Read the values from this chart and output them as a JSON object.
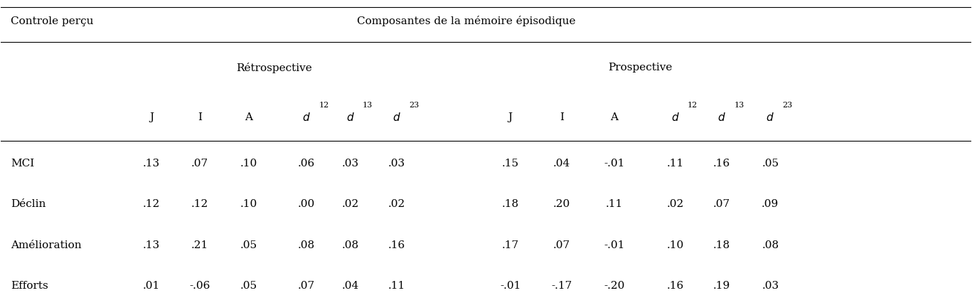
{
  "header1_left": "Controle perçu",
  "header1_right": "Composantes de la mémoire épisodique",
  "subheader_retro": "Rétrospective",
  "subheader_prosp": "Prospective",
  "col_headers": [
    "J",
    "I",
    "A",
    "d¹²",
    "d¹³",
    "d²³",
    "J",
    "I",
    "A",
    "d¹²",
    "d¹³",
    "d²³"
  ],
  "col_headers_italic": [
    false,
    false,
    false,
    true,
    true,
    true,
    false,
    false,
    false,
    true,
    true,
    true
  ],
  "col_headers_superscript": [
    "",
    "",
    "",
    "12",
    "13",
    "23",
    "",
    "",
    "",
    "12",
    "13",
    "23"
  ],
  "rows": [
    {
      "label": "MCI",
      "values": [
        ".13",
        ".07",
        ".10",
        ".06",
        ".03",
        ".03",
        ".15",
        ".04",
        "-.01",
        ".11",
        ".16",
        ".05"
      ]
    },
    {
      "label": "Déclin",
      "values": [
        ".12",
        ".12",
        ".10",
        ".00",
        ".02",
        ".02",
        ".18",
        ".20",
        ".11",
        ".02",
        ".07",
        ".09"
      ]
    },
    {
      "label": "Amélioration",
      "values": [
        ".13",
        ".21",
        ".05",
        ".08",
        ".08",
        ".16",
        ".17",
        ".07",
        "-.01",
        ".10",
        ".18",
        ".08"
      ]
    },
    {
      "label": "Efforts",
      "values": [
        ".01",
        "-.06",
        ".05",
        ".07",
        ".04",
        ".11",
        "-.01",
        "-.17",
        "-.20",
        ".16",
        ".19",
        ".03"
      ]
    }
  ],
  "bg_color": "#ffffff",
  "text_color": "#000000",
  "font_size": 11,
  "line_color": "#000000"
}
